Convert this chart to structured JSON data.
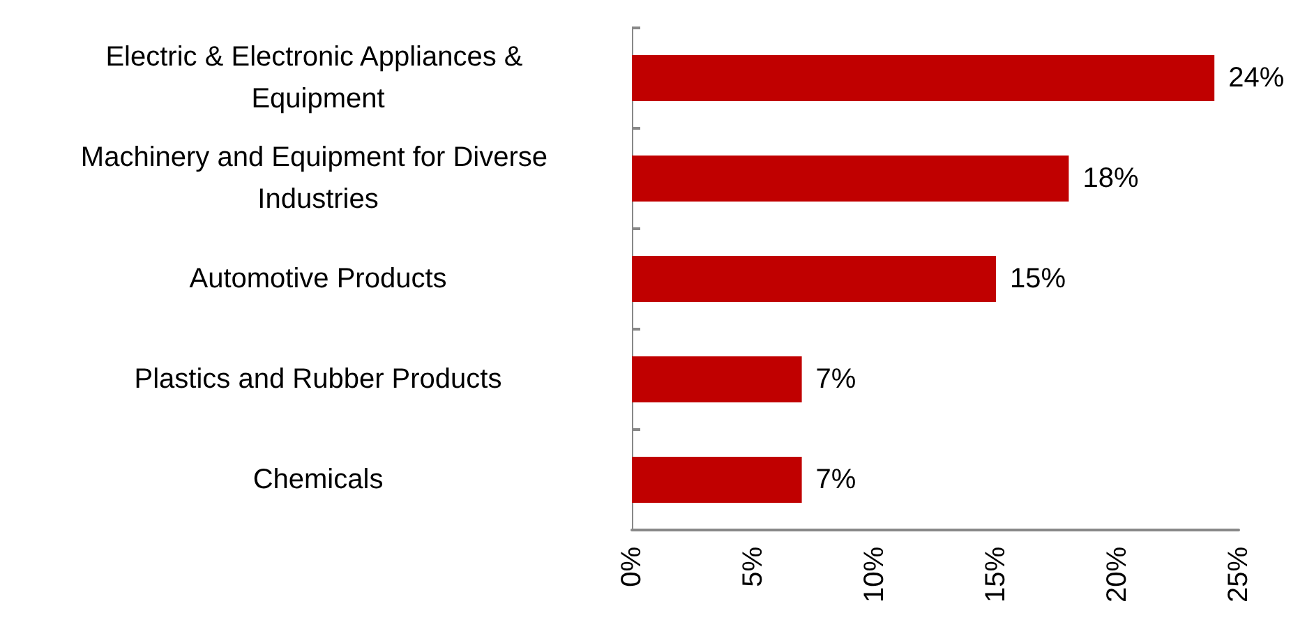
{
  "chart_data": {
    "type": "bar",
    "orientation": "horizontal",
    "categories": [
      "Electric & Electronic Appliances & Equipment",
      "Machinery and Equipment for Diverse Industries",
      "Automotive Products",
      "Plastics and Rubber Products",
      "Chemicals"
    ],
    "series": [
      {
        "color": "#c00000",
        "values": [
          24,
          18,
          15,
          7,
          7
        ],
        "value_labels": [
          "24%",
          "18%",
          "15%",
          "7%",
          "7%"
        ]
      }
    ],
    "xlim": [
      0,
      25
    ],
    "xticks": [
      {
        "value": 0,
        "label": "0%"
      },
      {
        "value": 5,
        "label": "5%"
      },
      {
        "value": 10,
        "label": "10%"
      },
      {
        "value": 15,
        "label": "15%"
      },
      {
        "value": 20,
        "label": "20%"
      },
      {
        "value": 25,
        "label": "25%"
      }
    ],
    "grid": false
  }
}
